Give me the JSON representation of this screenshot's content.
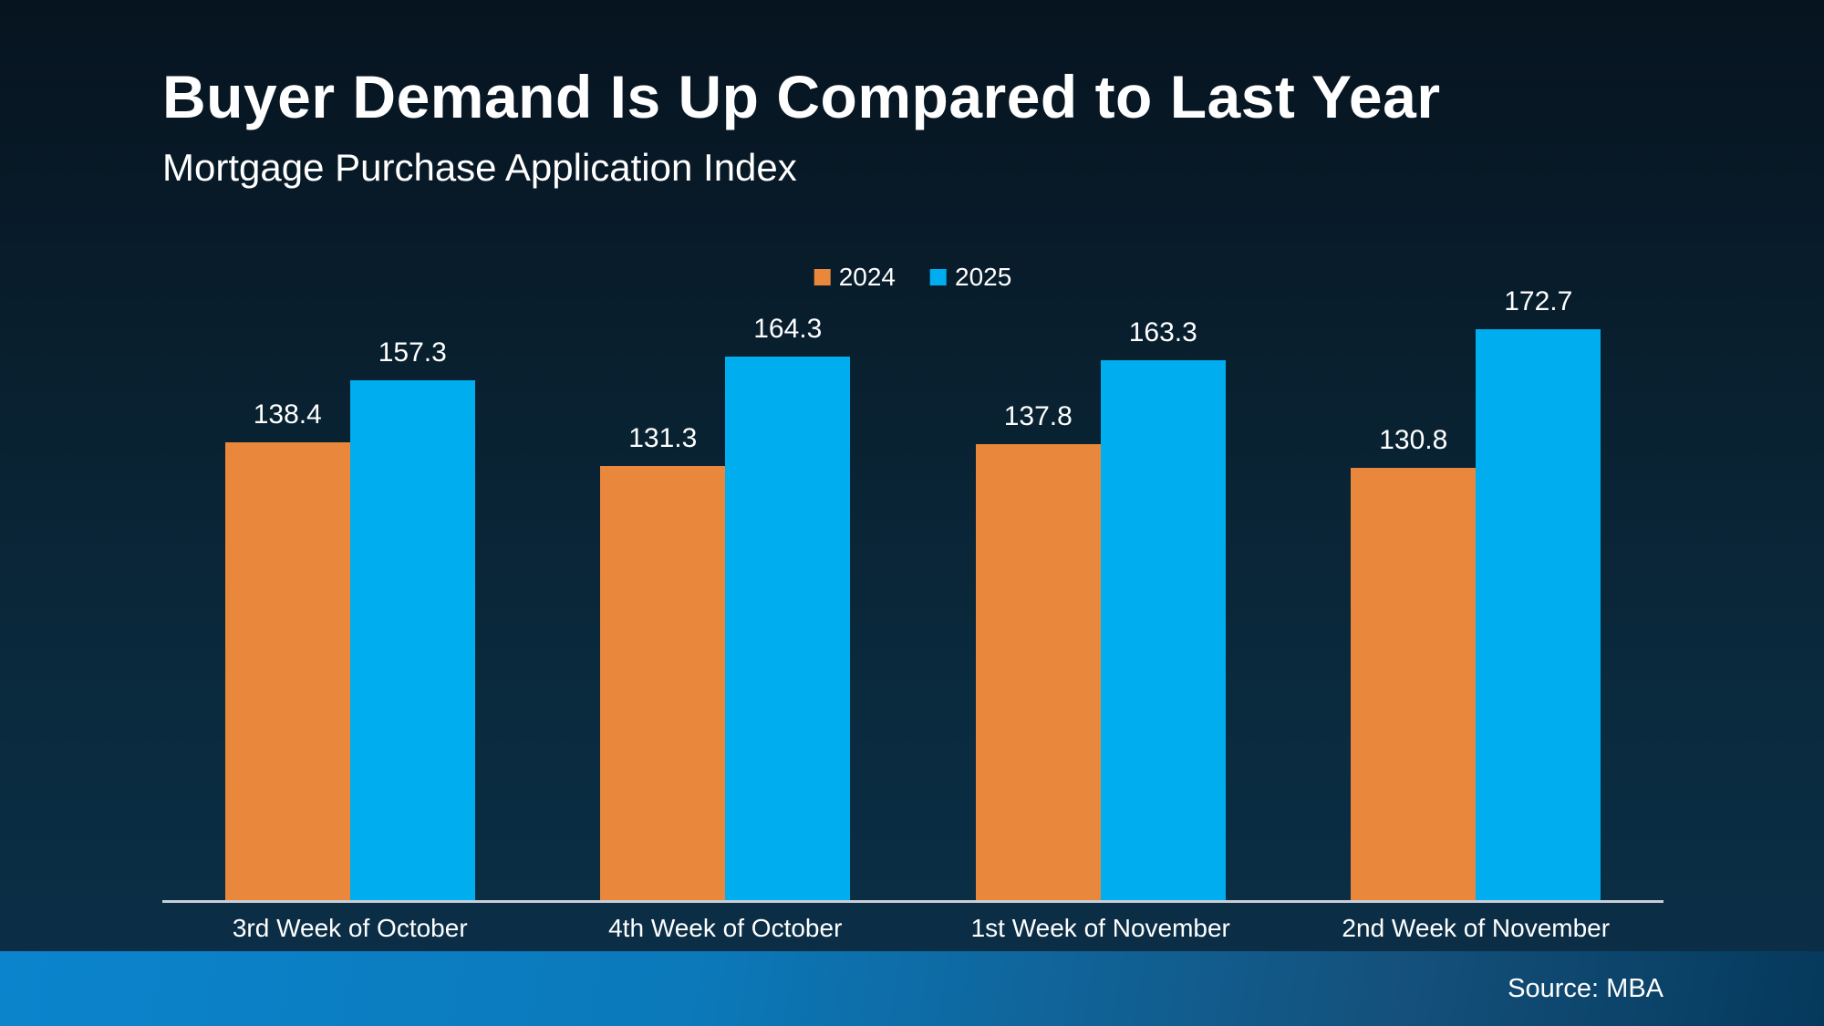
{
  "header": {
    "title": "Buyer Demand Is Up Compared to Last Year",
    "subtitle": "Mortgage Purchase Application Index"
  },
  "footer": {
    "source": "Source: MBA"
  },
  "colors": {
    "series_2024": "#e9883c",
    "series_2025": "#00aeef",
    "axis_line": "#c9ced6",
    "text": "#ffffff",
    "footer_left": "#0b84cd",
    "footer_right": "#05395c",
    "background_top": "#06141f",
    "background_bottom": "#0b3049"
  },
  "chart_data": {
    "type": "bar",
    "title": "Buyer Demand Is Up Compared to Last Year",
    "subtitle": "Mortgage Purchase Application Index",
    "categories": [
      "3rd Week of October",
      "4th Week of October",
      "1st Week of November",
      "2nd Week of November"
    ],
    "series": [
      {
        "name": "2024",
        "color": "#e9883c",
        "values": [
          138.4,
          131.3,
          137.8,
          130.8
        ]
      },
      {
        "name": "2025",
        "color": "#00aeef",
        "values": [
          157.3,
          164.3,
          163.3,
          172.7
        ]
      }
    ],
    "xlabel": "",
    "ylabel": "",
    "ylim": [
      0,
      185
    ],
    "grid": false,
    "legend_position": "top-center",
    "data_labels": true,
    "source": "Source: MBA"
  }
}
